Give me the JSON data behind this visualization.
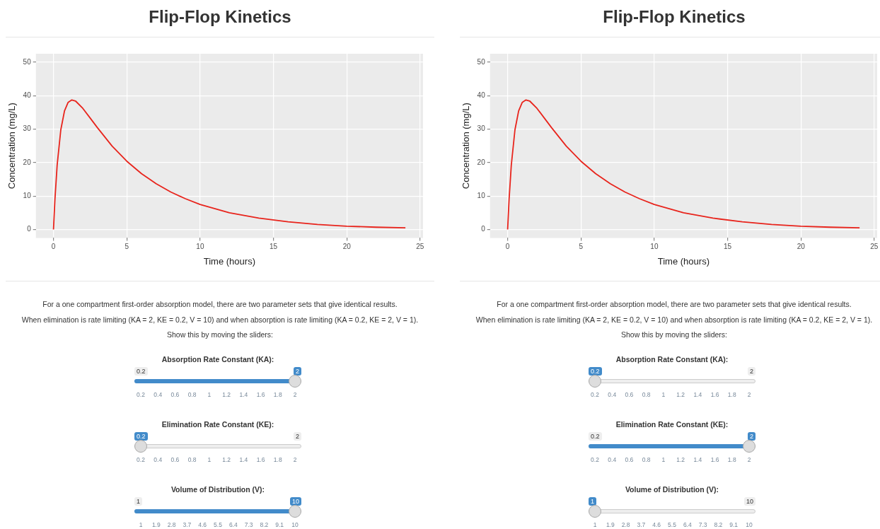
{
  "chart_data": [
    {
      "type": "line",
      "title": "Flip-Flop Kinetics",
      "xlabel": "Time (hours)",
      "ylabel": "Concentration (mg/L)",
      "x": [
        0,
        0.1,
        0.25,
        0.5,
        0.75,
        1,
        1.25,
        1.5,
        2,
        2.5,
        3,
        4,
        5,
        6,
        7,
        8,
        9,
        10,
        12,
        14,
        16,
        18,
        20,
        22,
        24
      ],
      "series": [
        {
          "color": "#e8241c",
          "values": [
            0,
            9.0,
            19.2,
            29.8,
            35.4,
            38.0,
            38.7,
            38.4,
            36.2,
            33.3,
            30.4,
            24.9,
            20.4,
            16.7,
            13.7,
            11.2,
            9.2,
            7.5,
            5.0,
            3.4,
            2.3,
            1.5,
            1.0,
            0.7,
            0.5
          ]
        }
      ],
      "xlim": [
        -1.2,
        25.2
      ],
      "ylim": [
        -2.5,
        52.5
      ],
      "xticks": [
        0,
        5,
        10,
        15,
        20,
        25
      ],
      "yticks": [
        0,
        10,
        20,
        30,
        40,
        50
      ],
      "grid": true,
      "legend": false,
      "marker": "none",
      "line_style": "solid",
      "annotations": [
        "For a one compartment first-order absorption model, there are two parameter sets that give identical results.",
        "When elimination is rate limiting (KA = 2, KE = 0.2, V = 10) and when absorption is rate limiting (KA = 0.2, KE = 2, V = 1).",
        "Show this by moving the sliders:",
        "Absorption Rate Constant (KA):",
        "0.2",
        "2",
        "0.2",
        "0.4",
        "0.6",
        "0.8",
        "1",
        "1.2",
        "1.4",
        "1.6",
        "1.8",
        "2",
        "Elimination Rate Constant (KE):",
        "0.2",
        "2",
        "0.2",
        "0.4",
        "0.6",
        "0.8",
        "1",
        "1.2",
        "1.4",
        "1.6",
        "1.8",
        "2",
        "Volume of Distribution (V):",
        "1",
        "10",
        "1",
        "1.9",
        "2.8",
        "3.7",
        "4.6",
        "5.5",
        "6.4",
        "7.3",
        "8.2",
        "9.1",
        "10"
      ]
    },
    {
      "type": "line",
      "title": "Flip-Flop Kinetics",
      "xlabel": "Time (hours)",
      "ylabel": "Concentration (mg/L)",
      "x": [
        0,
        0.1,
        0.25,
        0.5,
        0.75,
        1,
        1.25,
        1.5,
        2,
        2.5,
        3,
        4,
        5,
        6,
        7,
        8,
        9,
        10,
        12,
        14,
        16,
        18,
        20,
        22,
        24
      ],
      "series": [
        {
          "color": "#e8241c",
          "values": [
            0,
            9.0,
            19.2,
            29.8,
            35.4,
            38.0,
            38.7,
            38.4,
            36.2,
            33.3,
            30.4,
            24.9,
            20.4,
            16.7,
            13.7,
            11.2,
            9.2,
            7.5,
            5.0,
            3.4,
            2.3,
            1.5,
            1.0,
            0.7,
            0.5
          ]
        }
      ],
      "xlim": [
        -1.2,
        25.2
      ],
      "ylim": [
        -2.5,
        52.5
      ],
      "xticks": [
        0,
        5,
        10,
        15,
        20,
        25
      ],
      "yticks": [
        0,
        10,
        20,
        30,
        40,
        50
      ],
      "grid": true,
      "legend": false,
      "marker": "none",
      "line_style": "solid",
      "annotations": [
        "For a one compartment first-order absorption model, there are two parameter sets that give identical results.",
        "When elimination is rate limiting (KA = 2, KE = 0.2, V = 10) and when absorption is rate limiting (KA = 0.2, KE = 2, V = 1).",
        "Show this by moving the sliders:",
        "Absorption Rate Constant (KA):",
        "0.2",
        "2",
        "0.2",
        "0.4",
        "0.6",
        "0.8",
        "1",
        "1.2",
        "1.4",
        "1.6",
        "1.8",
        "2",
        "Elimination Rate Constant (KE):",
        "0.2",
        "2",
        "0.2",
        "0.4",
        "0.6",
        "0.8",
        "1",
        "1.2",
        "1.4",
        "1.6",
        "1.8",
        "2",
        "Volume of Distribution (V):",
        "1",
        "10",
        "1",
        "1.9",
        "2.8",
        "3.7",
        "4.6",
        "5.5",
        "6.4",
        "7.3",
        "8.2",
        "9.1",
        "10"
      ]
    }
  ]
}
